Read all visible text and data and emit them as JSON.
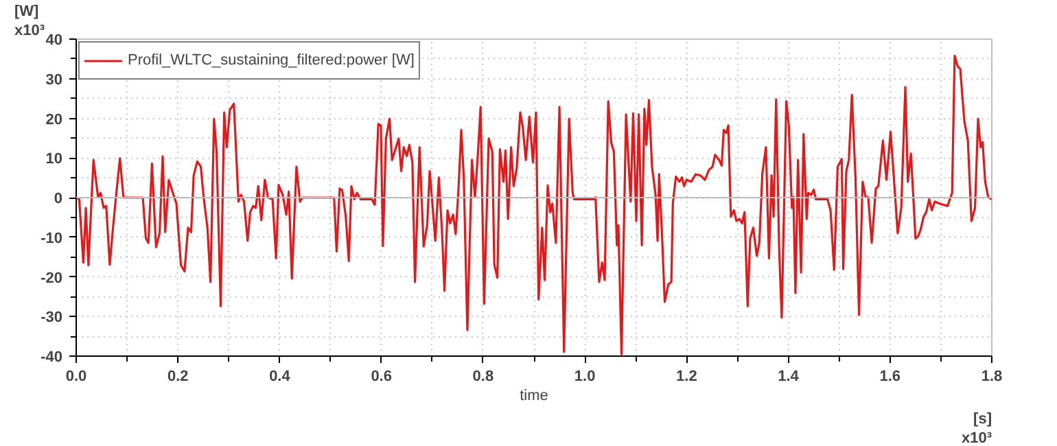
{
  "chart_data": {
    "type": "line",
    "xlabel": "time",
    "legend": "top left",
    "grid": true,
    "line_style": "solid",
    "marker": "none",
    "annotations": [
      "[W]",
      "x10³",
      "x10³",
      "[s]"
    ],
    "ref_lines": [
      {
        "axis": "y",
        "value": 0,
        "color": "#c0c0c0"
      }
    ],
    "xlim": [
      0,
      1.8
    ],
    "ylim": [
      -40,
      40
    ],
    "xticks": [
      {
        "value": 0,
        "label": "0.0"
      },
      {
        "value": 0.1,
        "label": null
      },
      0.2,
      {
        "value": 0.3,
        "label": null
      },
      0.4,
      {
        "value": 0.5,
        "label": null
      },
      0.6,
      {
        "value": 0.7,
        "label": null
      },
      0.8,
      {
        "value": 0.9,
        "label": null
      },
      {
        "value": 1.0,
        "label": "1.0"
      },
      {
        "value": 1.1,
        "label": null
      },
      1.2,
      {
        "value": 1.3,
        "label": null
      },
      1.4,
      {
        "value": 1.5,
        "label": null
      },
      1.6,
      {
        "value": 1.7,
        "label": null
      },
      1.8
    ],
    "yticks": [
      -40,
      {
        "value": -35,
        "label": null
      },
      -30,
      {
        "value": -25,
        "label": null
      },
      -20,
      {
        "value": -15,
        "label": null
      },
      -10,
      {
        "value": -5,
        "label": null
      },
      0,
      {
        "value": 5,
        "label": null
      },
      10,
      {
        "value": 15,
        "label": null
      },
      20,
      {
        "value": 25,
        "label": null
      },
      30,
      {
        "value": 35,
        "label": null
      },
      40
    ],
    "series": [
      {
        "name": "Profil_WLTC_sustaining_filtered:power [W]",
        "color": "#e31a1c",
        "x": [
          0,
          0.006,
          0.014,
          0.019,
          0.024,
          0.034,
          0.043,
          0.048,
          0.054,
          0.059,
          0.066,
          0.072,
          0.079,
          0.086,
          0.093,
          0.131,
          0.137,
          0.142,
          0.149,
          0.157,
          0.164,
          0.17,
          0.175,
          0.182,
          0.19,
          0.197,
          0.206,
          0.213,
          0.22,
          0.226,
          0.231,
          0.238,
          0.245,
          0.251,
          0.258,
          0.264,
          0.271,
          0.276,
          0.284,
          0.291,
          0.296,
          0.302,
          0.31,
          0.319,
          0.324,
          0.33,
          0.337,
          0.342,
          0.348,
          0.353,
          0.358,
          0.364,
          0.371,
          0.377,
          0.386,
          0.393,
          0.398,
          0.406,
          0.413,
          0.418,
          0.424,
          0.433,
          0.44,
          0.445,
          0.507,
          0.512,
          0.518,
          0.523,
          0.53,
          0.536,
          0.541,
          0.547,
          0.552,
          0.559,
          0.581,
          0.587,
          0.594,
          0.599,
          0.603,
          0.609,
          0.616,
          0.621,
          0.634,
          0.639,
          0.644,
          0.65,
          0.655,
          0.661,
          0.666,
          0.675,
          0.683,
          0.69,
          0.695,
          0.701,
          0.706,
          0.713,
          0.719,
          0.724,
          0.73,
          0.735,
          0.741,
          0.746,
          0.751,
          0.757,
          0.762,
          0.769,
          0.778,
          0.784,
          0.79,
          0.795,
          0.802,
          0.811,
          0.818,
          0.822,
          0.828,
          0.833,
          0.84,
          0.844,
          0.849,
          0.855,
          0.86,
          0.866,
          0.873,
          0.878,
          0.884,
          0.891,
          0.898,
          0.904,
          0.909,
          0.916,
          0.921,
          0.927,
          0.932,
          0.936,
          0.943,
          0.95,
          0.959,
          0.969,
          0.976,
          0.979,
          1.021,
          1.021,
          1.028,
          1.034,
          1.039,
          1.046,
          1.052,
          1.057,
          1.063,
          1.066,
          1.072,
          1.081,
          1.09,
          1.095,
          1.101,
          1.106,
          1.112,
          1.117,
          1.121,
          1.126,
          1.132,
          1.139,
          1.143,
          1.146,
          1.152,
          1.157,
          1.164,
          1.17,
          1.173,
          1.179,
          1.186,
          1.191,
          1.195,
          1.2,
          1.209,
          1.218,
          1.227,
          1.236,
          1.244,
          1.251,
          1.256,
          1.264,
          1.269,
          1.273,
          1.278,
          1.282,
          1.287,
          1.293,
          1.298,
          1.304,
          1.309,
          1.314,
          1.32,
          1.325,
          1.331,
          1.338,
          1.343,
          1.349,
          1.356,
          1.362,
          1.367,
          1.371,
          1.376,
          1.382,
          1.387,
          1.396,
          1.401,
          1.407,
          1.41,
          1.414,
          1.419,
          1.425,
          1.43,
          1.436,
          1.439,
          1.445,
          1.45,
          1.454,
          1.477,
          1.483,
          1.49,
          1.497,
          1.505,
          1.508,
          1.514,
          1.519,
          1.525,
          1.532,
          1.539,
          1.546,
          1.552,
          1.557,
          1.564,
          1.572,
          1.577,
          1.586,
          1.593,
          1.601,
          1.606,
          1.615,
          1.622,
          1.63,
          1.635,
          1.641,
          1.646,
          1.65,
          1.655,
          1.66,
          1.666,
          1.671,
          1.677,
          1.682,
          1.688,
          1.697,
          1.713,
          1.722,
          1.727,
          1.733,
          1.738,
          1.746,
          1.753,
          1.76,
          1.767,
          1.773,
          1.778,
          1.782,
          1.787,
          1.793,
          1.8
        ],
        "values": [
          0,
          -0.4,
          -16.4,
          -2.6,
          -17.1,
          9.5,
          0.1,
          1.2,
          -2.6,
          -2.1,
          -16.9,
          -8.1,
          1.2,
          9.9,
          0,
          0,
          -10.3,
          -11.4,
          8.6,
          -12.5,
          -9.0,
          10.4,
          -8.7,
          4.4,
          1.2,
          -1.5,
          -17.1,
          -18.6,
          -7.6,
          -8.7,
          5.6,
          9.1,
          7.8,
          -0.4,
          -7.6,
          -21.3,
          19.9,
          11.6,
          -27.4,
          21.5,
          12.7,
          22.1,
          23.7,
          -1.0,
          0.7,
          -1.0,
          -10.9,
          -3.7,
          -2.1,
          -2.6,
          2.9,
          -5.7,
          4.5,
          0,
          -0.4,
          -15.3,
          3.2,
          0.7,
          -4.3,
          1.5,
          -20.4,
          7.8,
          -1.0,
          0,
          0,
          -13.6,
          2.3,
          1.8,
          -4.8,
          -16.0,
          2.9,
          -0.4,
          1.2,
          -0.4,
          -0.4,
          -1.8,
          18.6,
          18.2,
          -12.2,
          14.9,
          19.9,
          9.5,
          14.9,
          6.7,
          12.7,
          10.5,
          13.3,
          8.9,
          -21.3,
          12.7,
          -12.3,
          -7.0,
          6.7,
          -2.6,
          -10.9,
          5.1,
          -8.1,
          -23.5,
          -3.2,
          -6.5,
          -4.3,
          -9.2,
          0.7,
          17.1,
          5.1,
          -33.4,
          9.5,
          0.1,
          11.6,
          22.9,
          -26.8,
          14.9,
          11.6,
          -16.9,
          -20.2,
          12.2,
          4.0,
          11.9,
          -5.4,
          12.7,
          2.9,
          7.3,
          21.5,
          17.7,
          9.5,
          20.4,
          8.9,
          21.5,
          -25.7,
          -7.6,
          -20.8,
          3.1,
          -3.7,
          -1.5,
          -11.4,
          22.9,
          -38.9,
          19.9,
          1.2,
          -0.4,
          -0.4,
          0.1,
          -21.3,
          -16.4,
          -20.8,
          24.3,
          13.8,
          11.6,
          -12.0,
          -7.0,
          -39.5,
          21.0,
          -1.0,
          21.3,
          -5.9,
          21.0,
          -12.0,
          22.4,
          13.3,
          24.6,
          7.8,
          0.7,
          -10.9,
          5.9,
          -10.3,
          -26.3,
          -21.9,
          -21.3,
          -1.5,
          5.3,
          4.0,
          5.1,
          2.9,
          4.5,
          4.0,
          5.9,
          5.6,
          4.5,
          7.0,
          7.8,
          10.8,
          9.5,
          8.1,
          17.1,
          16.3,
          18.2,
          -4.8,
          -3.2,
          -5.9,
          -5.4,
          -6.5,
          -3.7,
          -27.4,
          -10.3,
          -7.6,
          -14.7,
          -11.4,
          6.2,
          12.7,
          -15.3,
          5.6,
          -4.8,
          24.8,
          -13.1,
          -30.3,
          24.3,
          18.2,
          -2.6,
          0.1,
          -24.1,
          9.5,
          -18.9,
          16.0,
          -5.4,
          1.2,
          0.7,
          2.0,
          -0.4,
          -0.4,
          -3.2,
          -18.2,
          7.8,
          9.7,
          -18.0,
          6.7,
          9.5,
          25.9,
          5.1,
          -29.6,
          4.0,
          0.1,
          0.1,
          -11.4,
          2.3,
          2.9,
          14.4,
          4.5,
          16.6,
          7.8,
          -9.0,
          -2.6,
          27.9,
          4.0,
          11.1,
          -0.4,
          -10.3,
          -9.8,
          -8.1,
          -4.8,
          -3.7,
          -0.4,
          -3.2,
          -1.0,
          -1.5,
          -2.1,
          1.2,
          35.8,
          33.1,
          32.5,
          19.3,
          14.4,
          -5.9,
          -2.6,
          19.9,
          12.7,
          14.0,
          4.0,
          0.1,
          -0.4
        ]
      }
    ]
  }
}
